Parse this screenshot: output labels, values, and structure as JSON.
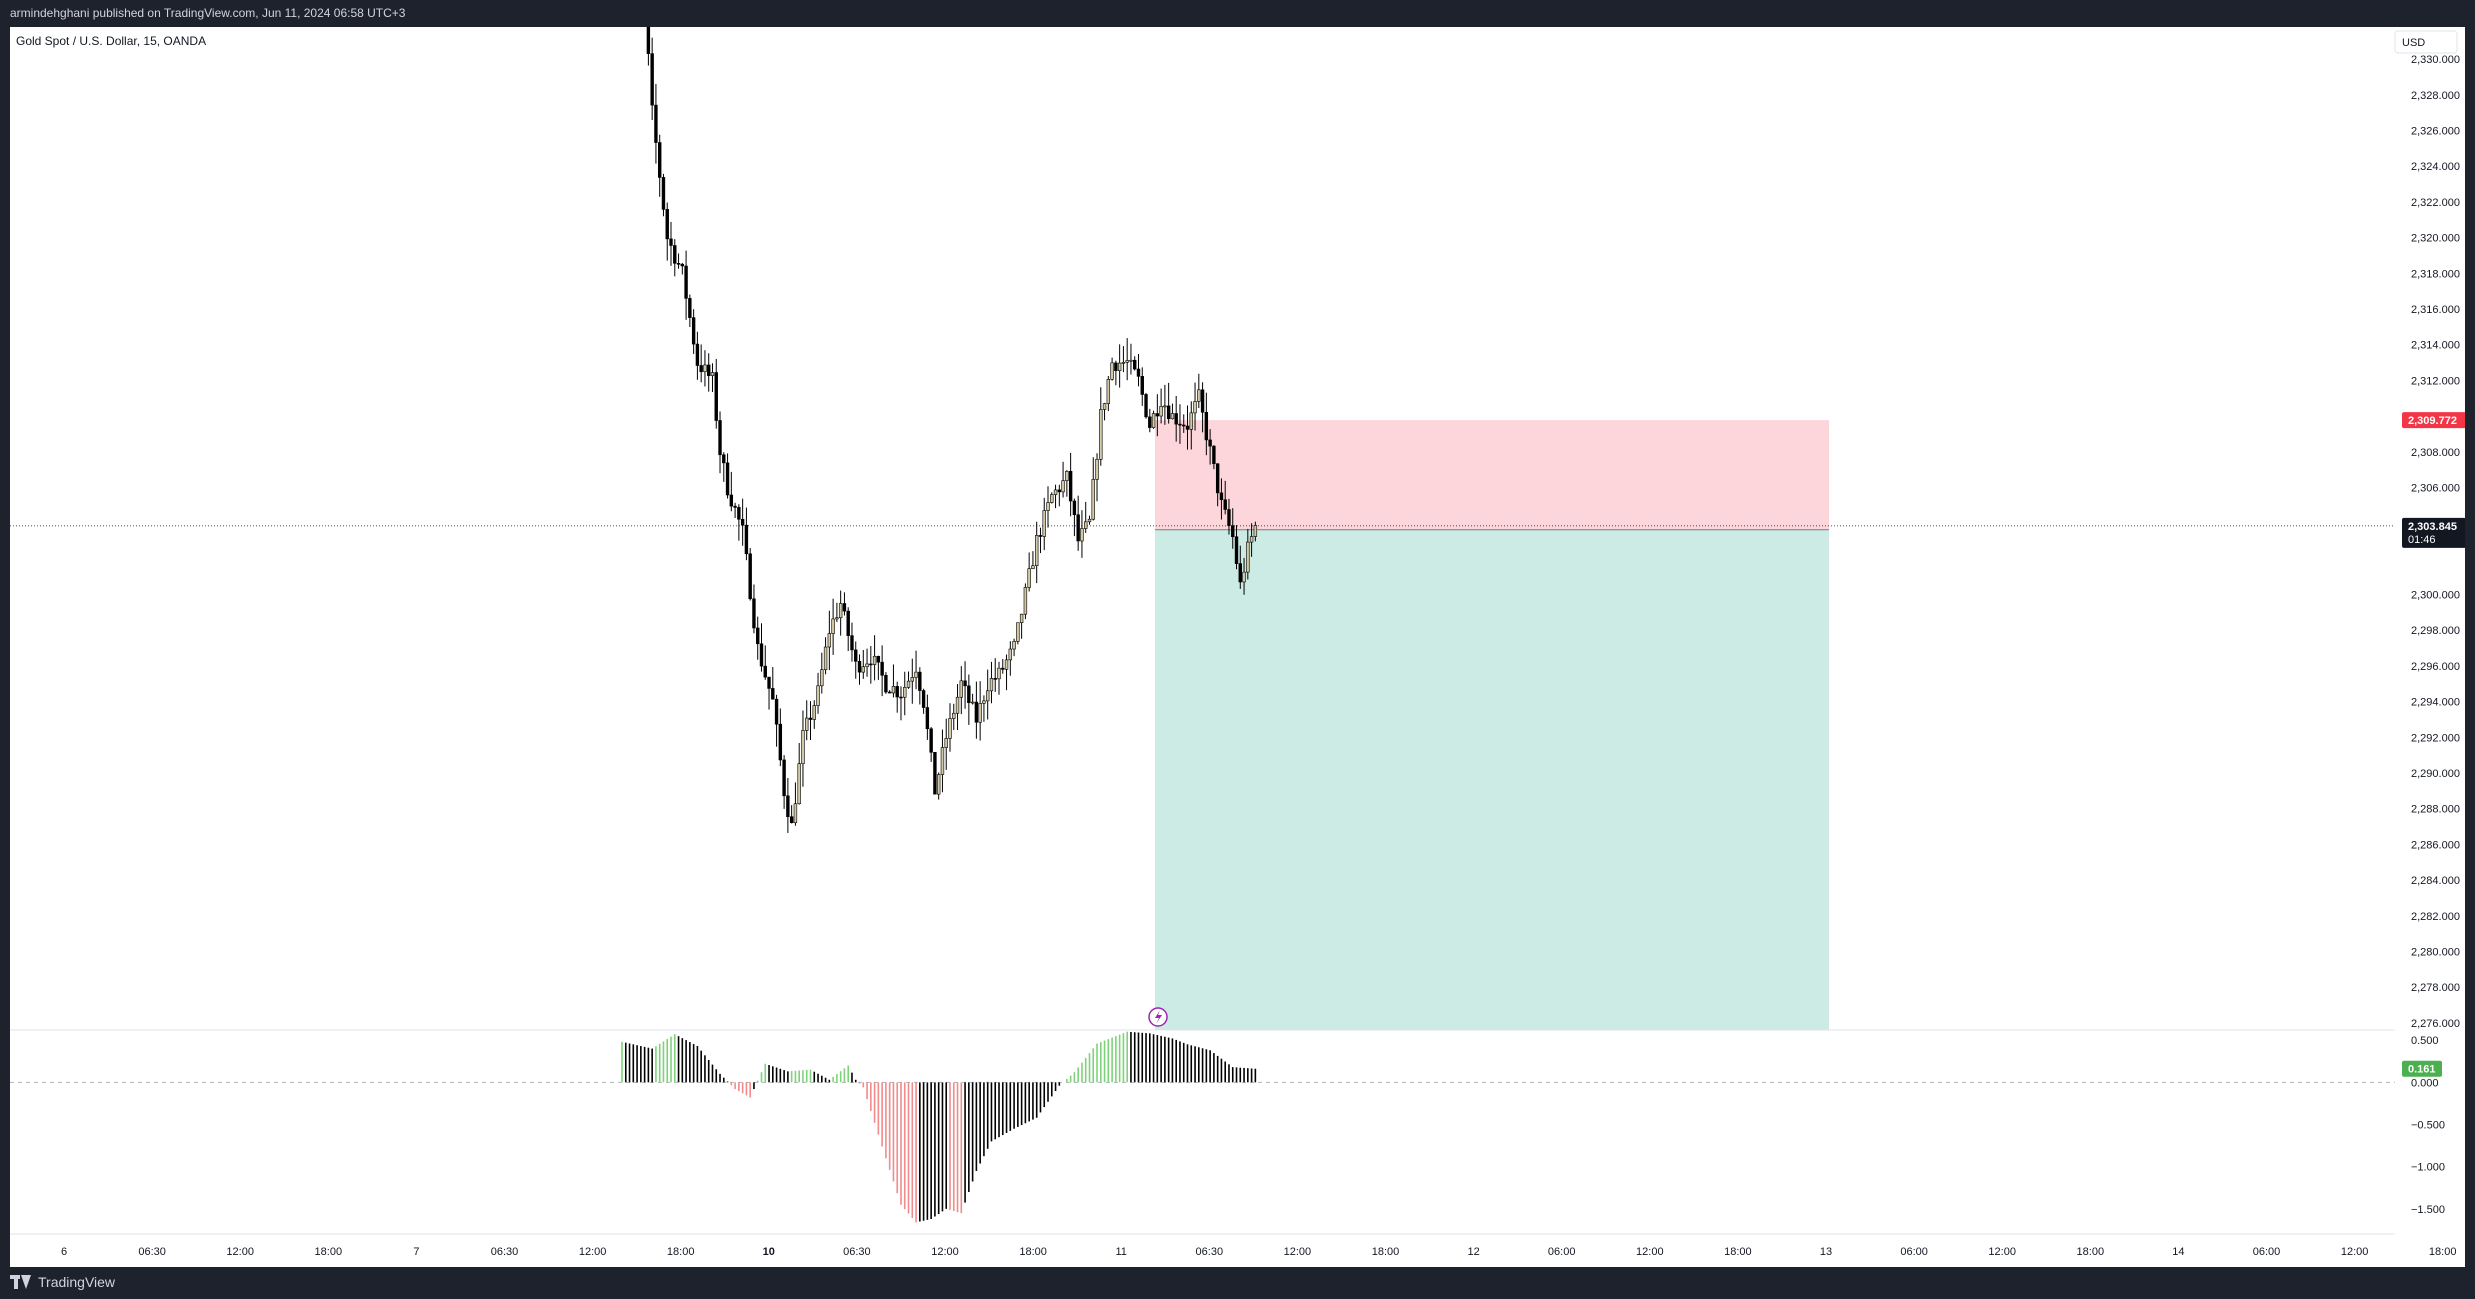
{
  "header": {
    "published": "armindehghani published on TradingView.com, Jun 11, 2024 06:58 UTC+3"
  },
  "chart": {
    "symbol_title": "Gold Spot / U.S. Dollar, 15, OANDA",
    "currency": "USD"
  },
  "footer": {
    "brand": "TradingView"
  },
  "colors": {
    "long_box": "#cdebe5",
    "short_box": "#fdd6db",
    "stop_label": "#f23645",
    "candle_up": "#d3c9a4",
    "candle_down": "#000000",
    "hist_pos": "#7ed37a",
    "hist_neg": "#f28b8b"
  },
  "chart_data": [
    {
      "type": "candlestick",
      "title": "Gold Spot / U.S. Dollar, 15, OANDA",
      "y_axis": {
        "unit": "USD",
        "ticks": [
          "2,330.000",
          "2,328.000",
          "2,326.000",
          "2,324.000",
          "2,322.000",
          "2,320.000",
          "2,318.000",
          "2,316.000",
          "2,314.000",
          "2,312.000",
          "2,308.000",
          "2,306.000",
          "2,300.000",
          "2,298.000",
          "2,296.000",
          "2,294.000",
          "2,292.000",
          "2,290.000",
          "2,288.000",
          "2,286.000",
          "2,284.000",
          "2,282.000",
          "2,280.000",
          "2,278.000",
          "2,276.000"
        ],
        "range": [
          2275.6,
          2331.8
        ]
      },
      "x_axis": {
        "ticks": [
          "6",
          "06:30",
          "12:00",
          "18:00",
          "7",
          "06:30",
          "12:00",
          "18:00",
          "10",
          "06:30",
          "12:00",
          "18:00",
          "11",
          "06:30",
          "12:00",
          "18:00",
          "12",
          "06:00",
          "12:00",
          "18:00",
          "13",
          "06:00",
          "12:00",
          "18:00",
          "14",
          "06:00",
          "12:00",
          "18:00"
        ]
      },
      "price_path": [
        [
          0,
          2334
        ],
        [
          6,
          2333
        ],
        [
          8,
          2327
        ],
        [
          12,
          2320
        ],
        [
          16,
          2318
        ],
        [
          20,
          2313
        ],
        [
          24,
          2312
        ],
        [
          26,
          2308
        ],
        [
          28,
          2306
        ],
        [
          32,
          2303.5
        ],
        [
          36,
          2297
        ],
        [
          40,
          2294
        ],
        [
          43,
          2289
        ],
        [
          45,
          2287
        ],
        [
          48,
          2292
        ],
        [
          52,
          2294.5
        ],
        [
          55,
          2298
        ],
        [
          58,
          2299.5
        ],
        [
          62,
          2296
        ],
        [
          66,
          2296.5
        ],
        [
          70,
          2295
        ],
        [
          74,
          2294.5
        ],
        [
          78,
          2296
        ],
        [
          80,
          2294
        ],
        [
          83,
          2289
        ],
        [
          86,
          2292
        ],
        [
          90,
          2295
        ],
        [
          94,
          2293
        ],
        [
          97,
          2295
        ],
        [
          100,
          2295.5
        ],
        [
          104,
          2297
        ],
        [
          106,
          2299
        ],
        [
          110,
          2303
        ],
        [
          114,
          2305.5
        ],
        [
          118,
          2306.5
        ],
        [
          121,
          2303
        ],
        [
          124,
          2304
        ],
        [
          127,
          2310
        ],
        [
          130,
          2313
        ],
        [
          134,
          2313
        ],
        [
          137,
          2312
        ],
        [
          140,
          2309.5
        ],
        [
          143,
          2311
        ],
        [
          146,
          2310
        ],
        [
          150,
          2309.5
        ],
        [
          153,
          2311
        ],
        [
          156,
          2308
        ],
        [
          159,
          2305
        ],
        [
          162,
          2303.2
        ],
        [
          164,
          2300.5
        ],
        [
          166,
          2302.5
        ],
        [
          168,
          2303.8
        ]
      ],
      "current_price": {
        "value": "2,303.845",
        "countdown": "01:46"
      },
      "position": {
        "type": "short",
        "entry": "2,303.628",
        "stop": "2,309.772",
        "target": 2275.6
      }
    },
    {
      "type": "bar",
      "title": "oscillator histogram",
      "y_axis": {
        "ticks": [
          "0.500",
          "0.000",
          "−0.500",
          "−1.000",
          "−1.500"
        ],
        "range": [
          -1.75,
          0.62
        ]
      },
      "current_value": "0.161",
      "keyframes": [
        [
          0,
          0.48
        ],
        [
          8,
          0.4
        ],
        [
          14,
          0.57
        ],
        [
          20,
          0.43
        ],
        [
          26,
          0.1
        ],
        [
          30,
          -0.08
        ],
        [
          34,
          -0.18
        ],
        [
          38,
          0.22
        ],
        [
          44,
          0.13
        ],
        [
          50,
          0.15
        ],
        [
          55,
          0.03
        ],
        [
          60,
          0.2
        ],
        [
          62,
          0.03
        ],
        [
          64,
          -0.06
        ],
        [
          70,
          -0.9
        ],
        [
          74,
          -1.45
        ],
        [
          78,
          -1.66
        ],
        [
          82,
          -1.62
        ],
        [
          86,
          -1.5
        ],
        [
          90,
          -1.55
        ],
        [
          94,
          -1.05
        ],
        [
          98,
          -0.7
        ],
        [
          104,
          -0.55
        ],
        [
          110,
          -0.42
        ],
        [
          116,
          -0.04
        ],
        [
          120,
          0.12
        ],
        [
          126,
          0.46
        ],
        [
          134,
          0.6
        ],
        [
          140,
          0.58
        ],
        [
          146,
          0.52
        ],
        [
          150,
          0.45
        ],
        [
          156,
          0.38
        ],
        [
          162,
          0.18
        ],
        [
          168,
          0.161
        ]
      ]
    }
  ]
}
